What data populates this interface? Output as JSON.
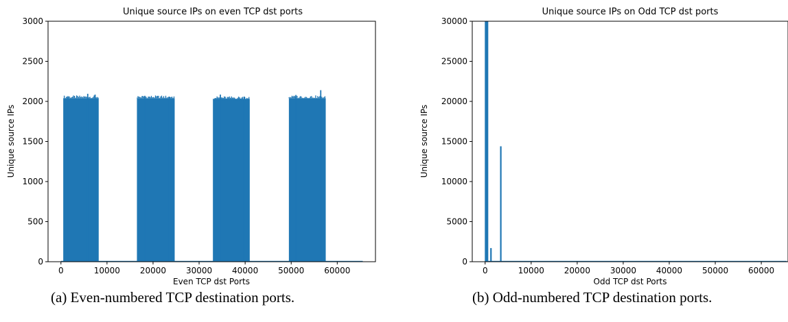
{
  "captions": {
    "a": "(a) Even-numbered TCP destination ports.",
    "b": "(b) Odd-numbered TCP destination ports."
  },
  "chart_data": [
    {
      "type": "bar",
      "title": "Unique source IPs on even TCP dst ports",
      "xlabel": "Even TCP dst Ports",
      "ylabel": "Unique source IPs",
      "xlim": [
        -2800,
        68300
      ],
      "ylim": [
        0,
        3000
      ],
      "xticks": [
        0,
        10000,
        20000,
        30000,
        40000,
        50000,
        60000
      ],
      "yticks": [
        0,
        500,
        1000,
        1500,
        2000,
        2500,
        3000
      ],
      "color": "#1f77b4",
      "grid": false,
      "blocks": [
        {
          "x_start": 500,
          "x_end": 8200,
          "value": 2040
        },
        {
          "x_start": 16500,
          "x_end": 24700,
          "value": 2040
        },
        {
          "x_start": 33000,
          "x_end": 41000,
          "value": 2030
        },
        {
          "x_start": 49500,
          "x_end": 57500,
          "value": 2040
        }
      ],
      "baseline": {
        "x_start": 0,
        "x_end": 65535,
        "value": 3
      },
      "peaks": [
        {
          "x": 1500,
          "value": 2065
        },
        {
          "x": 5800,
          "value": 2095
        },
        {
          "x": 7400,
          "value": 2085
        },
        {
          "x": 18200,
          "value": 2070
        },
        {
          "x": 23500,
          "value": 2060
        },
        {
          "x": 34600,
          "value": 2085
        },
        {
          "x": 39800,
          "value": 2060
        },
        {
          "x": 51000,
          "value": 2080
        },
        {
          "x": 56400,
          "value": 2140
        }
      ]
    },
    {
      "type": "bar",
      "title": "Unique source IPs on Odd TCP dst ports",
      "xlabel": "Odd TCP dst Ports",
      "ylabel": "Unique source IPs",
      "xlim": [
        -2800,
        65800
      ],
      "ylim": [
        0,
        30000
      ],
      "xticks": [
        0,
        10000,
        20000,
        30000,
        40000,
        50000,
        60000
      ],
      "yticks": [
        0,
        5000,
        10000,
        15000,
        20000,
        25000,
        30000
      ],
      "color": "#1f77b4",
      "grid": false,
      "bars": [
        {
          "x": 80,
          "value": 30000
        },
        {
          "x": 300,
          "value": 30000
        },
        {
          "x": 500,
          "value": 30000
        },
        {
          "x": 1250,
          "value": 1700
        },
        {
          "x": 3390,
          "value": 14400
        }
      ],
      "baseline": {
        "x_start": 0,
        "x_end": 65535,
        "value": 60
      }
    }
  ]
}
